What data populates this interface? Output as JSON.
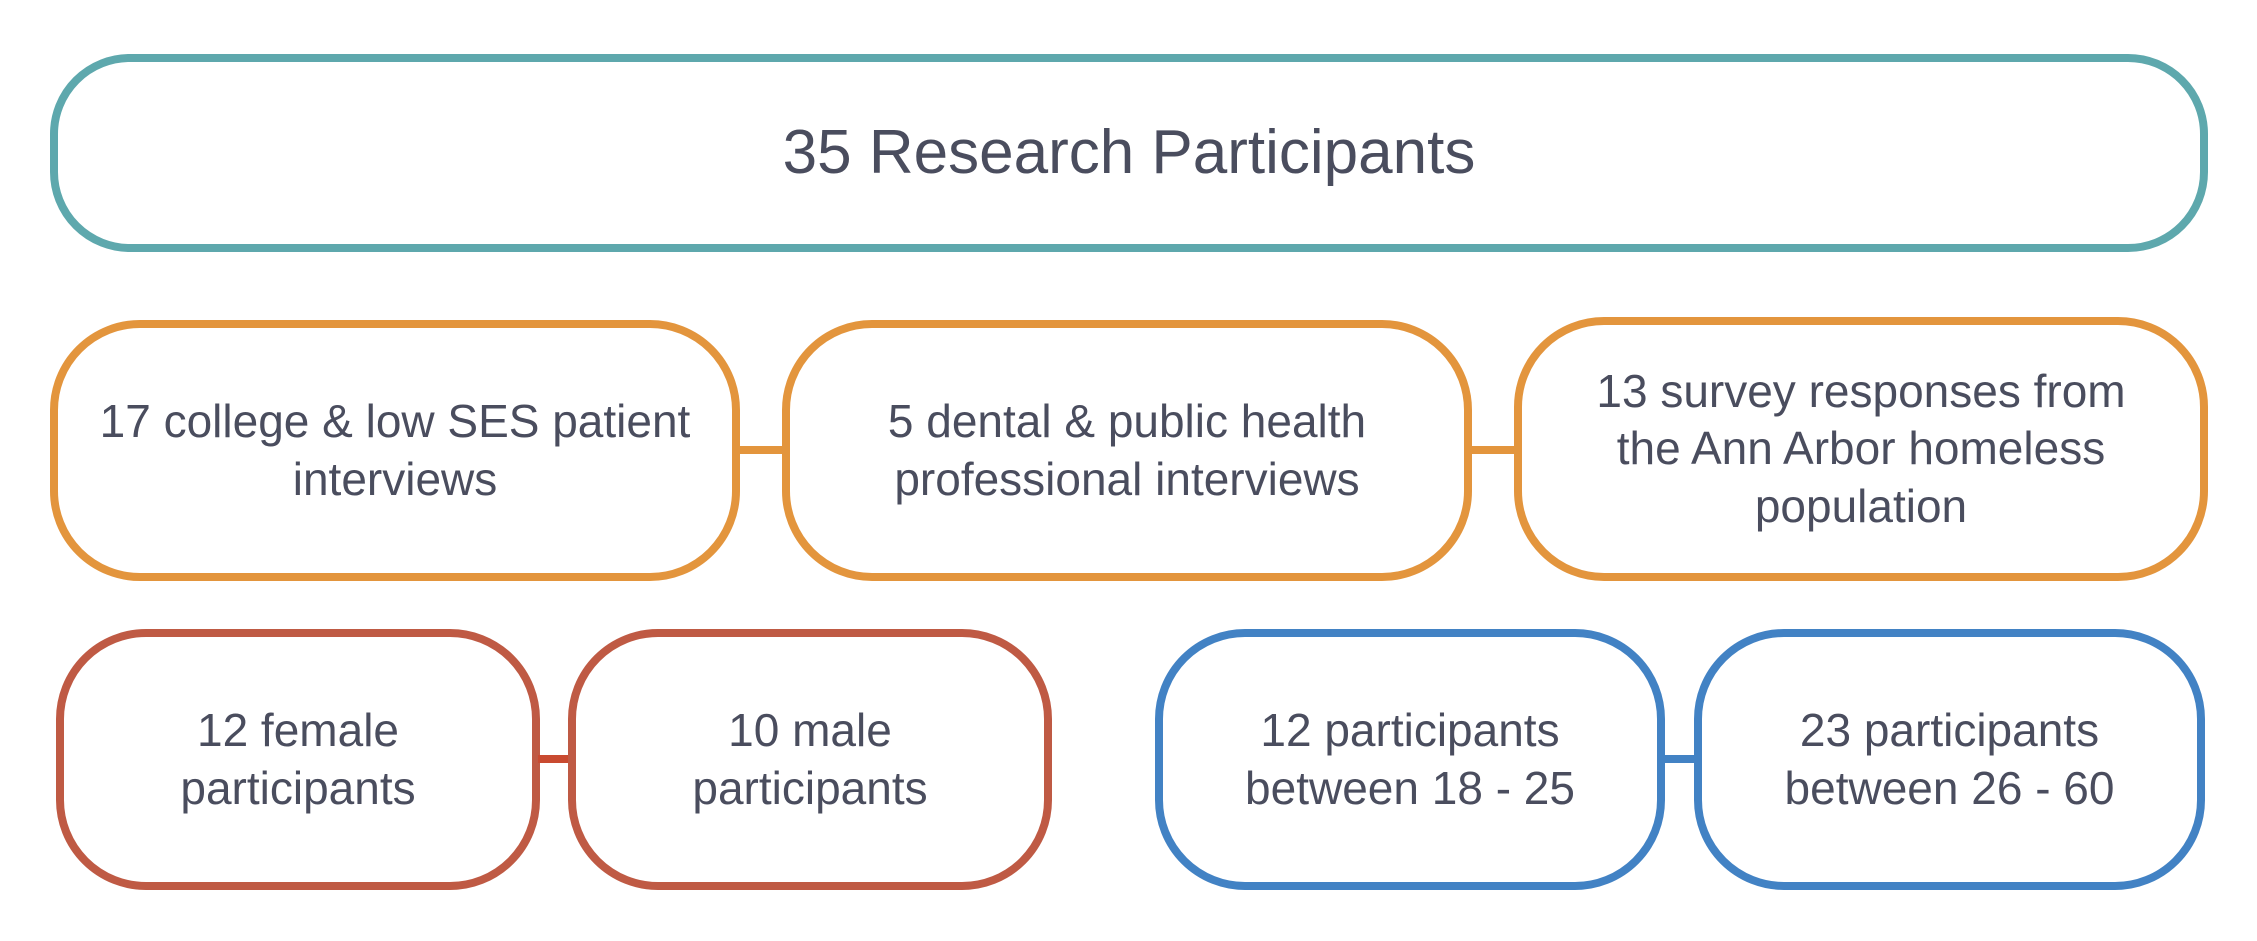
{
  "diagram": {
    "top": {
      "label": "35 Research Participants",
      "color": "#5ea8ad"
    },
    "middle_row": {
      "color": "#e3953d",
      "items": [
        {
          "label": "17 college & low SES patient\ninterviews"
        },
        {
          "label": "5 dental & public health\nprofessional interviews"
        },
        {
          "label": "13 survey responses from\nthe Ann Arbor homeless\npopulation"
        }
      ]
    },
    "gender_group": {
      "color": "#bf5a44",
      "items": [
        {
          "label": "12 female\nparticipants"
        },
        {
          "label": "10 male\nparticipants"
        }
      ]
    },
    "age_group": {
      "color": "#4282c4",
      "items": [
        {
          "label": "12 participants\nbetween 18 - 25"
        },
        {
          "label": "23 participants\nbetween 26 - 60"
        }
      ]
    }
  }
}
